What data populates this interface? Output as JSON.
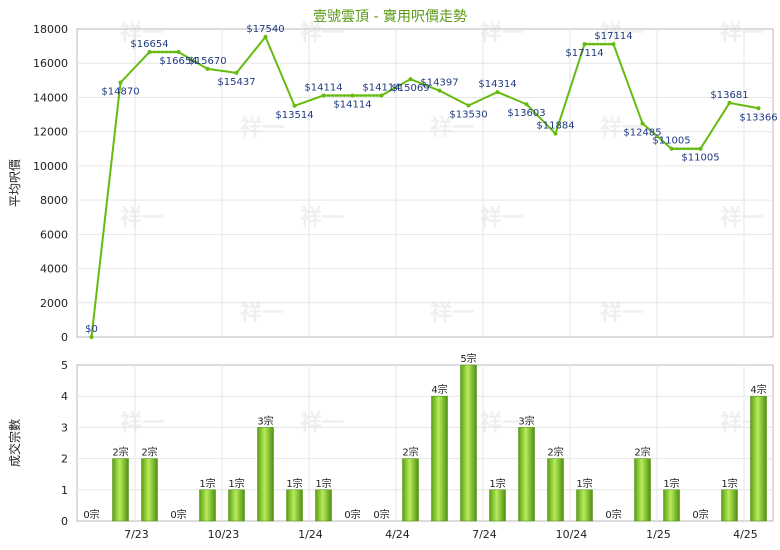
{
  "chart_data": [
    {
      "type": "line",
      "title": "壹號雲頂 - 實用呎價走勢",
      "ylabel": "平均呎價",
      "ylim": [
        0,
        18000
      ],
      "yticks": [
        0,
        2000,
        4000,
        6000,
        8000,
        10000,
        12000,
        14000,
        16000,
        18000
      ],
      "xtick_labels": [
        "7/23",
        "10/23",
        "1/24",
        "4/24",
        "7/24",
        "10/24",
        "1/25",
        "4/25"
      ],
      "grid": true,
      "series": [
        {
          "values": [
            0,
            14870,
            16654,
            16654,
            15670,
            15437,
            17540,
            13514,
            14114,
            14114,
            14114,
            15069,
            14397,
            13530,
            14314,
            13603,
            11884,
            17114,
            17114,
            12485,
            11005,
            11005,
            13681,
            13366
          ],
          "labels": [
            "$0",
            "$14870",
            "$16654",
            "$16654",
            "$15670",
            "$15437",
            "$17540",
            "$13514",
            "$14114",
            "$14114",
            "$14114",
            "$15069",
            "$14397",
            "$13530",
            "$14314",
            "$13603",
            "$11884",
            "$17114",
            "$17114",
            "$12485",
            "$11005",
            "$11005",
            "$13681",
            "$13366"
          ],
          "color": "#66bb11"
        }
      ]
    },
    {
      "type": "bar",
      "ylabel": "成交宗數",
      "ylim": [
        0,
        5
      ],
      "yticks": [
        0,
        1,
        2,
        3,
        4,
        5
      ],
      "xtick_labels": [
        "7/23",
        "10/23",
        "1/24",
        "4/24",
        "7/24",
        "10/24",
        "1/25",
        "4/25"
      ],
      "values": [
        0,
        2,
        2,
        0,
        1,
        1,
        3,
        1,
        1,
        0,
        0,
        2,
        4,
        5,
        1,
        3,
        2,
        1,
        0,
        2,
        1,
        0,
        1,
        4
      ],
      "labels": [
        "0宗",
        "2宗",
        "2宗",
        "0宗",
        "1宗",
        "1宗",
        "3宗",
        "1宗",
        "1宗",
        "0宗",
        "0宗",
        "2宗",
        "4宗",
        "5宗",
        "1宗",
        "3宗",
        "2宗",
        "1宗",
        "0宗",
        "2宗",
        "1宗",
        "0宗",
        "1宗",
        "4宗"
      ],
      "color": "#7cc51f"
    }
  ],
  "watermark": "祥一"
}
